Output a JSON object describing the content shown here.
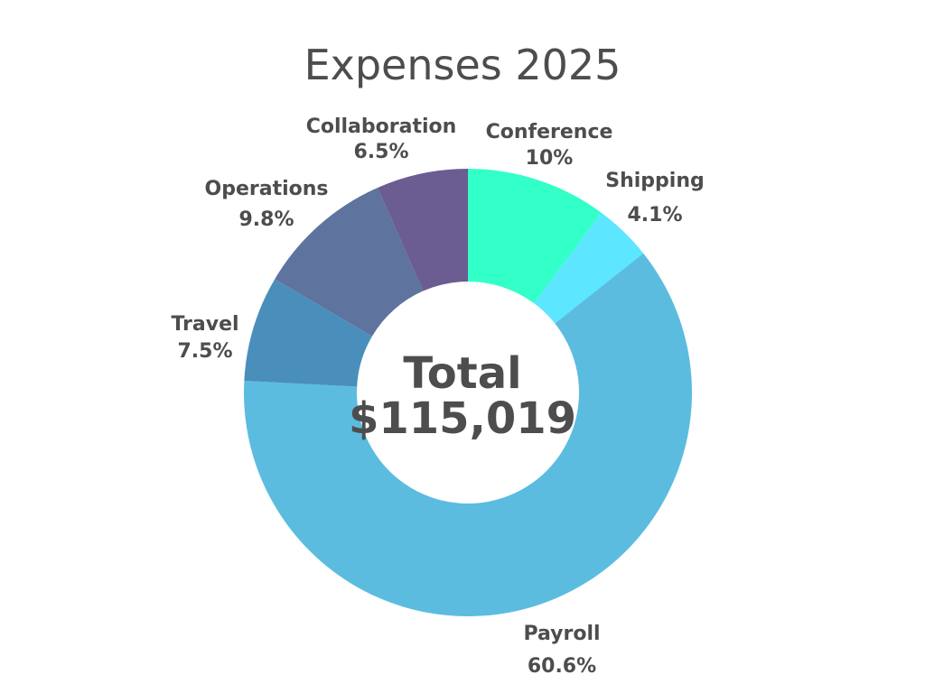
{
  "chart_data": {
    "type": "pie",
    "title": "Expenses 2025",
    "donut": true,
    "center_label": [
      "Total",
      "$115,019"
    ],
    "slices": [
      {
        "label": "Conference",
        "value": 10.0,
        "display": "10%",
        "color": "#33FFC9"
      },
      {
        "label": "Shipping",
        "value": 4.1,
        "display": "4.1%",
        "color": "#5CE6FF"
      },
      {
        "label": "Payroll",
        "value": 60.6,
        "display": "60.6%",
        "color": "#5BBCE0"
      },
      {
        "label": "Travel",
        "value": 7.5,
        "display": "7.5%",
        "color": "#4A8FBB"
      },
      {
        "label": "Operations",
        "value": 9.8,
        "display": "9.8%",
        "color": "#5E739E"
      },
      {
        "label": "Collaboration",
        "value": 6.5,
        "display": "6.5%",
        "color": "#6B5C91"
      }
    ]
  }
}
